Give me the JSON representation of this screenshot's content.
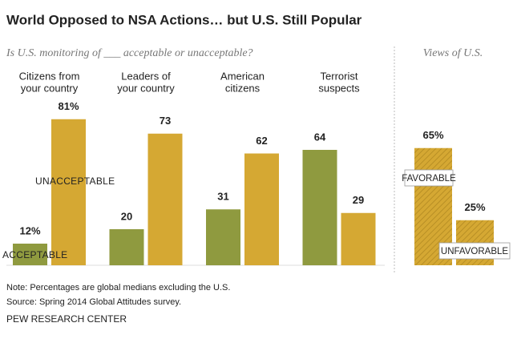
{
  "header": {
    "title": "World Opposed to NSA Actions… but U.S. Still Popular",
    "note": "Note: Percentages are global medians excluding the U.S.",
    "source": "Source: Spring 2014 Global Attitudes survey.",
    "credit": "PEW RESEARCH CENTER"
  },
  "chart_data": [
    {
      "type": "bar",
      "subtitle": "Is U.S. monitoring of ___ acceptable or unacceptable?",
      "categories": [
        [
          "Citizens from",
          "your country"
        ],
        [
          "Leaders of",
          "your country"
        ],
        [
          "American",
          "citizens"
        ],
        [
          "Terrorist",
          "suspects"
        ]
      ],
      "series": [
        {
          "name": "ACCEPTABLE",
          "color": "#8f9a3f",
          "values": [
            12,
            20,
            31,
            64
          ],
          "value_labels": [
            "12%",
            "20",
            "31",
            "64"
          ]
        },
        {
          "name": "UNACCEPTABLE",
          "color": "#d5a833",
          "values": [
            81,
            73,
            62,
            29
          ],
          "value_labels": [
            "81%",
            "73",
            "62",
            "29"
          ]
        }
      ],
      "ylim": [
        0,
        100
      ]
    },
    {
      "type": "bar",
      "title": "Views of U.S.",
      "categories": [
        "FAVORABLE",
        "UNFAVORABLE"
      ],
      "values": [
        65,
        25
      ],
      "value_labels": [
        "65%",
        "25%"
      ],
      "color": "#d5a833",
      "pattern": "hatch",
      "ylim": [
        0,
        100
      ]
    }
  ]
}
